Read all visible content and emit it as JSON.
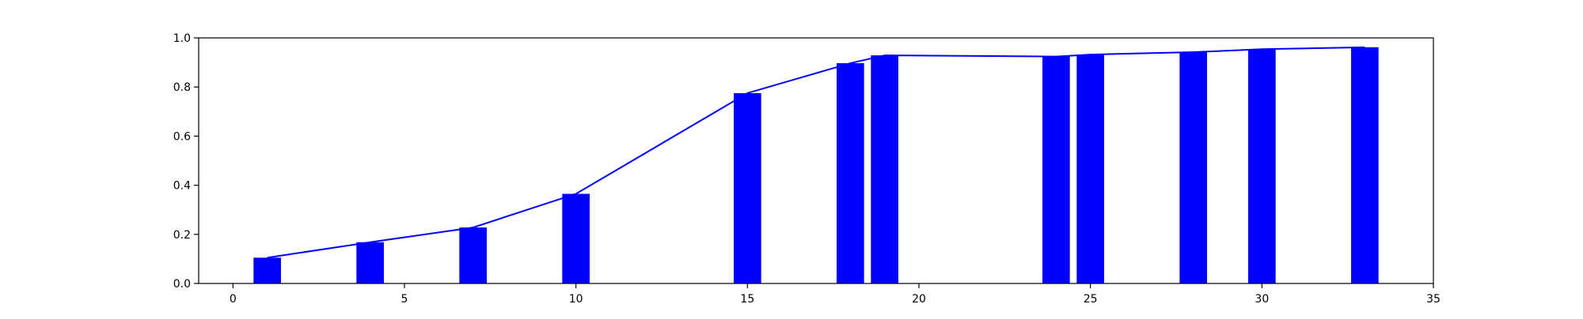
{
  "chart_data": {
    "type": "bar",
    "title": "",
    "xlabel": "",
    "ylabel": "",
    "xlim": [
      -1,
      35
    ],
    "ylim": [
      0,
      1.0
    ],
    "grid": false,
    "bar_color": "#0000ff",
    "line_color": "#0000ff",
    "xticks": [
      0,
      5,
      10,
      15,
      20,
      25,
      30,
      35
    ],
    "yticks": [
      0.0,
      0.2,
      0.4,
      0.6,
      0.8,
      1.0
    ],
    "xtick_labels": [
      "0",
      "5",
      "10",
      "15",
      "20",
      "25",
      "30",
      "35"
    ],
    "ytick_labels": [
      "0.0",
      "0.2",
      "0.4",
      "0.6",
      "0.8",
      "1.0"
    ],
    "bars": {
      "x": [
        1,
        4,
        7,
        10,
        15,
        18,
        19,
        24,
        25,
        28,
        30,
        33
      ],
      "values": [
        0.105,
        0.168,
        0.228,
        0.365,
        0.775,
        0.897,
        0.929,
        0.924,
        0.932,
        0.942,
        0.954,
        0.962
      ]
    },
    "line": {
      "x": [
        1,
        4,
        7,
        10,
        15,
        18,
        19,
        24,
        25,
        28,
        30,
        33
      ],
      "values": [
        0.105,
        0.168,
        0.228,
        0.365,
        0.775,
        0.897,
        0.929,
        0.924,
        0.932,
        0.942,
        0.954,
        0.962
      ]
    }
  }
}
